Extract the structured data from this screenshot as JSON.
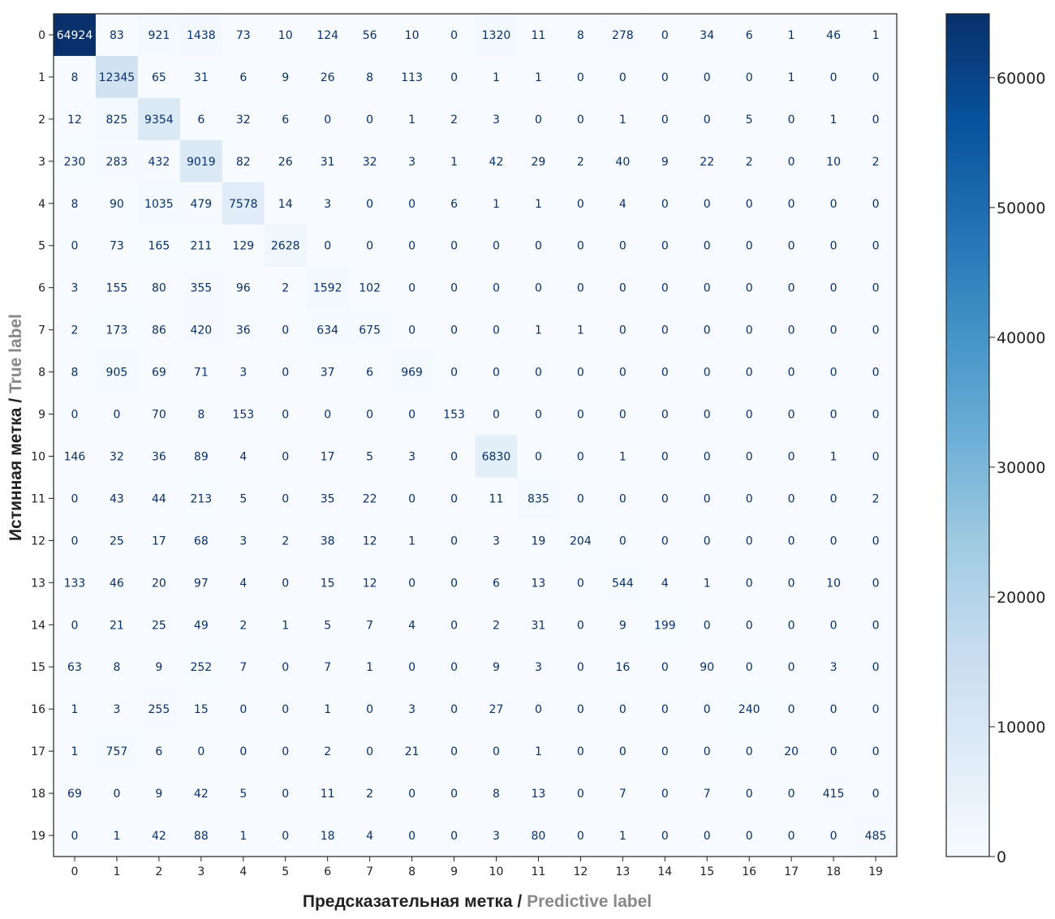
{
  "chart_data": {
    "type": "heatmap",
    "title": "",
    "xlabel": {
      "ru": "Предсказательная метка / ",
      "en": "Predictive label"
    },
    "ylabel": {
      "ru": "Истинная метка / ",
      "en": "True label"
    },
    "x_categories": [
      "0",
      "1",
      "2",
      "3",
      "4",
      "5",
      "6",
      "7",
      "8",
      "9",
      "10",
      "11",
      "12",
      "13",
      "14",
      "15",
      "16",
      "17",
      "18",
      "19"
    ],
    "y_categories": [
      "0",
      "1",
      "2",
      "3",
      "4",
      "5",
      "6",
      "7",
      "8",
      "9",
      "10",
      "11",
      "12",
      "13",
      "14",
      "15",
      "16",
      "17",
      "18",
      "19"
    ],
    "values": [
      [
        64924,
        83,
        921,
        1438,
        73,
        10,
        124,
        56,
        10,
        0,
        1320,
        11,
        8,
        278,
        0,
        34,
        6,
        1,
        46,
        1
      ],
      [
        8,
        12345,
        65,
        31,
        6,
        9,
        26,
        8,
        113,
        0,
        1,
        1,
        0,
        0,
        0,
        0,
        0,
        1,
        0,
        0
      ],
      [
        12,
        825,
        9354,
        6,
        32,
        6,
        0,
        0,
        1,
        2,
        3,
        0,
        0,
        1,
        0,
        0,
        5,
        0,
        1,
        0
      ],
      [
        230,
        283,
        432,
        9019,
        82,
        26,
        31,
        32,
        3,
        1,
        42,
        29,
        2,
        40,
        9,
        22,
        2,
        0,
        10,
        2
      ],
      [
        8,
        90,
        1035,
        479,
        7578,
        14,
        3,
        0,
        0,
        6,
        1,
        1,
        0,
        4,
        0,
        0,
        0,
        0,
        0,
        0
      ],
      [
        0,
        73,
        165,
        211,
        129,
        2628,
        0,
        0,
        0,
        0,
        0,
        0,
        0,
        0,
        0,
        0,
        0,
        0,
        0,
        0
      ],
      [
        3,
        155,
        80,
        355,
        96,
        2,
        1592,
        102,
        0,
        0,
        0,
        0,
        0,
        0,
        0,
        0,
        0,
        0,
        0,
        0
      ],
      [
        2,
        173,
        86,
        420,
        36,
        0,
        634,
        675,
        0,
        0,
        0,
        1,
        1,
        0,
        0,
        0,
        0,
        0,
        0,
        0
      ],
      [
        8,
        905,
        69,
        71,
        3,
        0,
        37,
        6,
        969,
        0,
        0,
        0,
        0,
        0,
        0,
        0,
        0,
        0,
        0,
        0
      ],
      [
        0,
        0,
        70,
        8,
        153,
        0,
        0,
        0,
        0,
        153,
        0,
        0,
        0,
        0,
        0,
        0,
        0,
        0,
        0,
        0
      ],
      [
        146,
        32,
        36,
        89,
        4,
        0,
        17,
        5,
        3,
        0,
        6830,
        0,
        0,
        1,
        0,
        0,
        0,
        0,
        1,
        0
      ],
      [
        0,
        43,
        44,
        213,
        5,
        0,
        35,
        22,
        0,
        0,
        11,
        835,
        0,
        0,
        0,
        0,
        0,
        0,
        0,
        2
      ],
      [
        0,
        25,
        17,
        68,
        3,
        2,
        38,
        12,
        1,
        0,
        3,
        19,
        204,
        0,
        0,
        0,
        0,
        0,
        0,
        0
      ],
      [
        133,
        46,
        20,
        97,
        4,
        0,
        15,
        12,
        0,
        0,
        6,
        13,
        0,
        544,
        4,
        1,
        0,
        0,
        10,
        0
      ],
      [
        0,
        21,
        25,
        49,
        2,
        1,
        5,
        7,
        4,
        0,
        2,
        31,
        0,
        9,
        199,
        0,
        0,
        0,
        0,
        0
      ],
      [
        63,
        8,
        9,
        252,
        7,
        0,
        7,
        1,
        0,
        0,
        9,
        3,
        0,
        16,
        0,
        90,
        0,
        0,
        3,
        0
      ],
      [
        1,
        3,
        255,
        15,
        0,
        0,
        1,
        0,
        3,
        0,
        27,
        0,
        0,
        0,
        0,
        0,
        240,
        0,
        0,
        0
      ],
      [
        1,
        757,
        6,
        0,
        0,
        0,
        2,
        0,
        21,
        0,
        0,
        1,
        0,
        0,
        0,
        0,
        0,
        20,
        0,
        0
      ],
      [
        69,
        0,
        9,
        42,
        5,
        0,
        11,
        2,
        0,
        0,
        8,
        13,
        0,
        7,
        0,
        7,
        0,
        0,
        415,
        0
      ],
      [
        0,
        1,
        42,
        88,
        1,
        0,
        18,
        4,
        0,
        0,
        3,
        80,
        0,
        1,
        0,
        0,
        0,
        0,
        0,
        485
      ]
    ],
    "colorbar": {
      "range": [
        0,
        64924
      ],
      "ticks": [
        0,
        10000,
        20000,
        30000,
        40000,
        50000,
        60000
      ],
      "colormap": "Blues",
      "low_color": "#f7fbff",
      "high_color": "#08306b"
    },
    "grid": false
  }
}
